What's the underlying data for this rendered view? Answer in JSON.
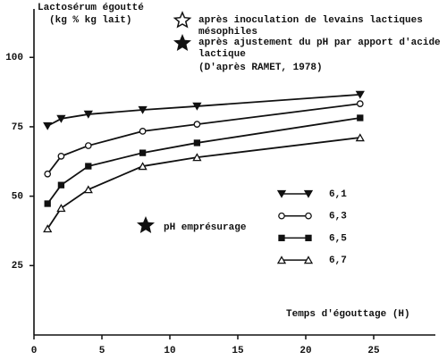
{
  "chart_data": {
    "type": "line",
    "y_label": [
      "Lactosérum égoutté",
      "(kg % kg lait)"
    ],
    "x_label": "Temps d'égouttage (H)",
    "annotations": {
      "open_star": [
        "après inoculation de levains lactiques",
        "mésophiles"
      ],
      "filled_star": [
        "après ajustement du pH par apport d'acide",
        "lactique"
      ],
      "source": "(D'après RAMET, 1978)",
      "ph_label": "pH emprésurage"
    },
    "x": [
      1,
      2,
      4,
      8,
      12,
      24
    ],
    "series": [
      {
        "name": "6,1",
        "color": "#111111",
        "marker": "triangle-down-filled",
        "values": [
          75.3,
          77.9,
          79.5,
          81.1,
          82.4,
          86.6
        ]
      },
      {
        "name": "6,3",
        "color": "#111111",
        "marker": "circle-open",
        "values": [
          58,
          64.4,
          68.2,
          73.4,
          75.9,
          83.3
        ]
      },
      {
        "name": "6,5",
        "color": "#111111",
        "marker": "square-filled",
        "values": [
          47.3,
          54,
          60.8,
          65.6,
          69.2,
          78.2
        ]
      },
      {
        "name": "6,7",
        "color": "#111111",
        "marker": "triangle-up-open",
        "values": [
          38.3,
          45.7,
          52.4,
          60.8,
          64,
          71.1
        ]
      }
    ],
    "xlim": [
      0,
      29.5
    ],
    "xticks": [
      0,
      5,
      10,
      15,
      20,
      25
    ],
    "ylim": [
      0,
      117
    ],
    "yticks": [
      25,
      50,
      75,
      100
    ],
    "grid": false
  }
}
